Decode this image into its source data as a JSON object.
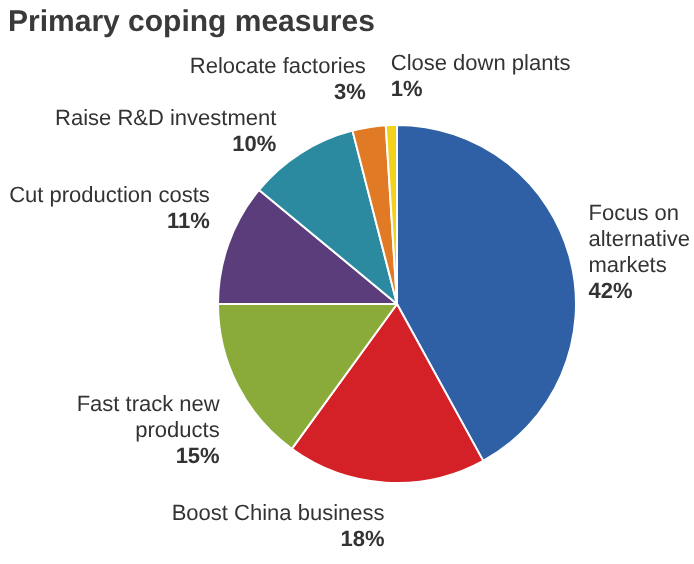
{
  "chart_data": {
    "type": "pie",
    "title": "Primary coping measures",
    "categories": [
      "Focus on alternative markets",
      "Boost China business",
      "Fast track new products",
      "Cut production costs",
      "Raise R&D investment",
      "Relocate factories",
      "Close down plants"
    ],
    "values": [
      42,
      18,
      15,
      11,
      10,
      3,
      1
    ],
    "colors": [
      "#2f5fa4",
      "#d42027",
      "#8aab3a",
      "#5a3d7a",
      "#2b8aa0",
      "#e07a25",
      "#f2d21b"
    ],
    "value_labels": [
      "42%",
      "18%",
      "15%",
      "11%",
      "10%",
      "3%",
      "1%"
    ],
    "legend": false
  }
}
